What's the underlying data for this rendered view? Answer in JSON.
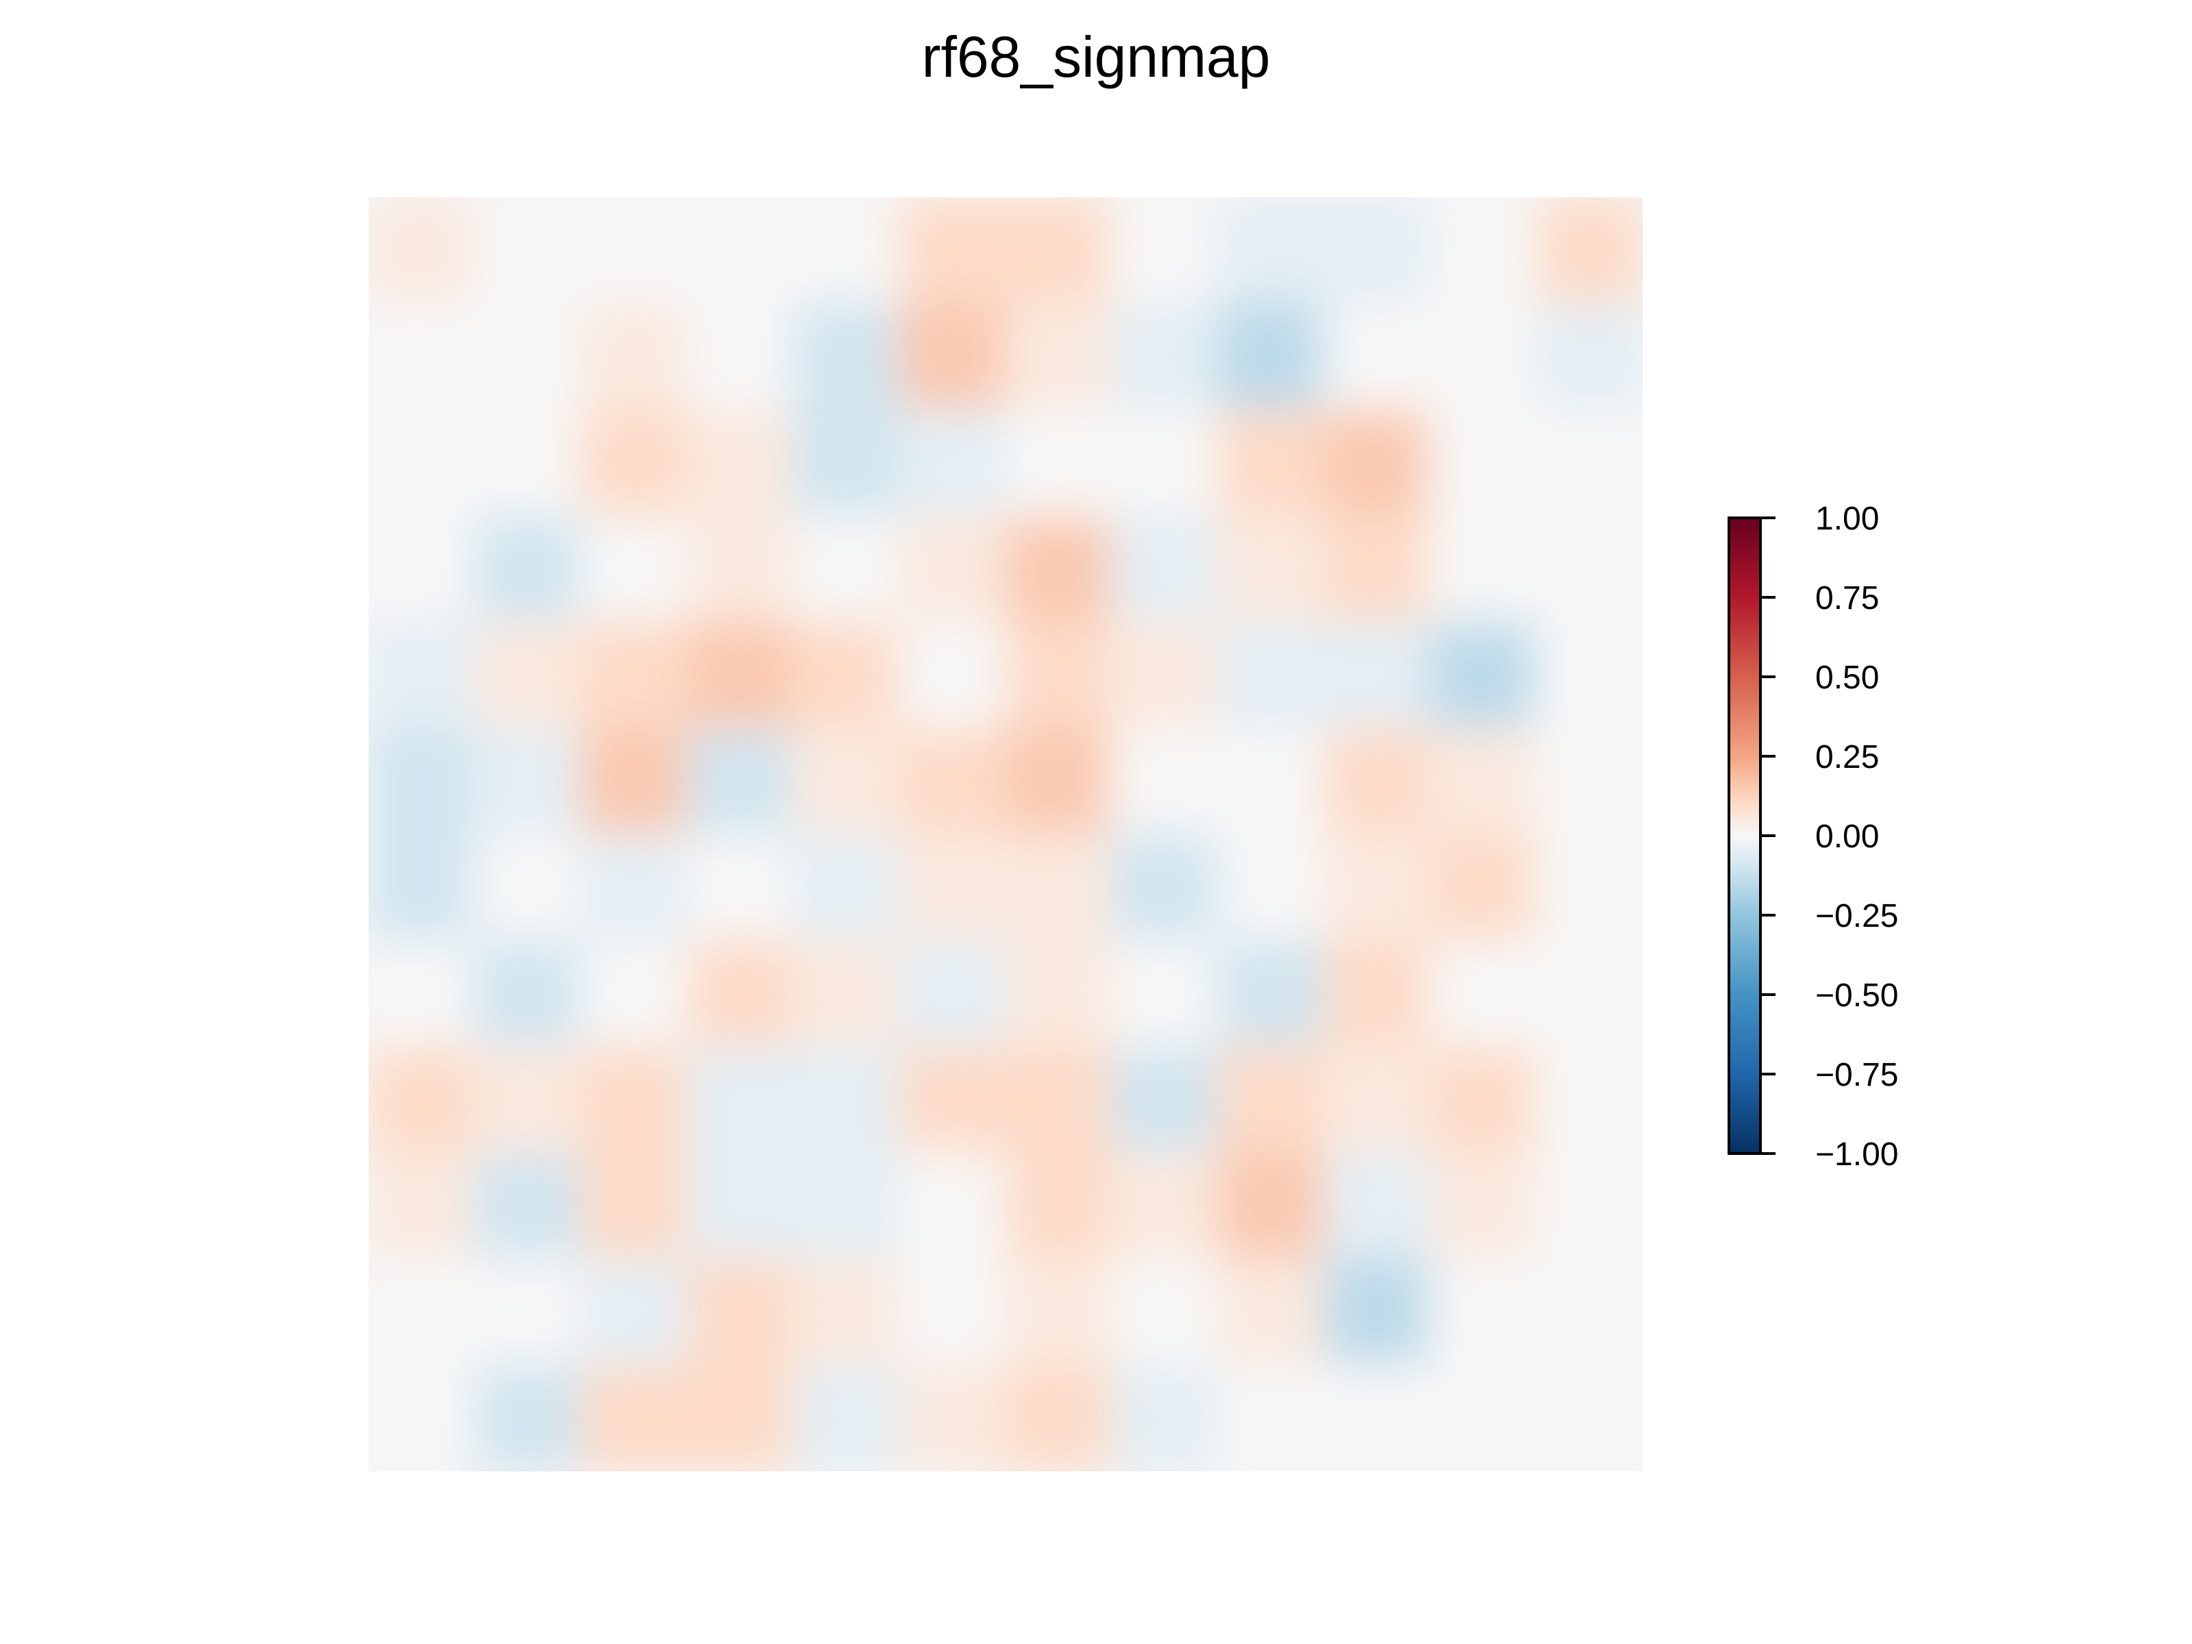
{
  "chart_data": {
    "type": "heatmap",
    "title": "rf68_signmap",
    "xlabel": "",
    "ylabel": "",
    "axes_visible": false,
    "grid": false,
    "legend": "none",
    "value_range": [
      -1.0,
      1.0
    ],
    "colormap": {
      "name": "RdBu_r",
      "stops": [
        {
          "value": -1.0,
          "color": "#053061"
        },
        {
          "value": -0.75,
          "color": "#2166ac"
        },
        {
          "value": -0.5,
          "color": "#4393c3"
        },
        {
          "value": -0.25,
          "color": "#92c5de"
        },
        {
          "value": -0.1,
          "color": "#d1e5f0"
        },
        {
          "value": 0.0,
          "color": "#f7f7f7"
        },
        {
          "value": 0.1,
          "color": "#fddbc7"
        },
        {
          "value": 0.25,
          "color": "#f4a582"
        },
        {
          "value": 0.5,
          "color": "#d6604d"
        },
        {
          "value": 0.75,
          "color": "#b2182b"
        },
        {
          "value": 1.0,
          "color": "#67001f"
        }
      ]
    },
    "colorbar": {
      "ticks": [
        1.0,
        0.75,
        0.5,
        0.25,
        0.0,
        -0.25,
        -0.5,
        -0.75,
        -1.0
      ],
      "tick_labels": [
        "1.00",
        "0.75",
        "0.50",
        "0.25",
        "0.00",
        "−0.25",
        "−0.50",
        "−0.75",
        "−1.00"
      ],
      "placement": "right"
    },
    "grid_rows": 12,
    "grid_cols": 12,
    "values": [
      [
        0.05,
        0.0,
        0.0,
        0.0,
        0.0,
        0.1,
        0.1,
        0.0,
        -0.05,
        -0.05,
        0.0,
        0.1
      ],
      [
        0.0,
        0.0,
        0.05,
        0.0,
        -0.1,
        0.15,
        0.05,
        -0.05,
        -0.15,
        0.0,
        0.0,
        -0.05
      ],
      [
        0.0,
        0.0,
        0.1,
        0.05,
        -0.1,
        -0.05,
        0.0,
        0.0,
        0.1,
        0.15,
        0.0,
        0.0
      ],
      [
        0.0,
        -0.1,
        0.0,
        0.05,
        0.0,
        0.05,
        0.15,
        -0.05,
        0.05,
        0.1,
        0.0,
        0.0
      ],
      [
        -0.05,
        0.05,
        0.1,
        0.15,
        0.1,
        0.0,
        0.1,
        0.05,
        -0.05,
        -0.05,
        -0.15,
        0.0
      ],
      [
        -0.1,
        -0.05,
        0.15,
        -0.1,
        0.05,
        0.1,
        0.15,
        0.0,
        0.0,
        0.1,
        0.05,
        0.0
      ],
      [
        -0.1,
        0.0,
        -0.05,
        0.0,
        -0.05,
        0.05,
        0.05,
        -0.1,
        0.0,
        0.05,
        0.1,
        0.0
      ],
      [
        0.0,
        -0.1,
        0.0,
        0.1,
        0.05,
        -0.05,
        0.05,
        0.0,
        -0.1,
        0.1,
        0.0,
        0.0
      ],
      [
        0.1,
        0.05,
        0.1,
        -0.05,
        -0.05,
        0.1,
        0.1,
        -0.1,
        0.1,
        0.05,
        0.1,
        0.0
      ],
      [
        0.05,
        -0.1,
        0.1,
        -0.05,
        -0.05,
        0.0,
        0.1,
        0.05,
        0.15,
        -0.05,
        0.05,
        0.0
      ],
      [
        0.0,
        0.0,
        -0.05,
        0.1,
        0.05,
        0.0,
        0.05,
        0.0,
        0.05,
        -0.15,
        0.0,
        0.0
      ],
      [
        0.0,
        -0.1,
        0.1,
        0.1,
        -0.05,
        0.05,
        0.1,
        -0.05,
        0.0,
        0.0,
        0.0,
        0.0
      ]
    ]
  }
}
